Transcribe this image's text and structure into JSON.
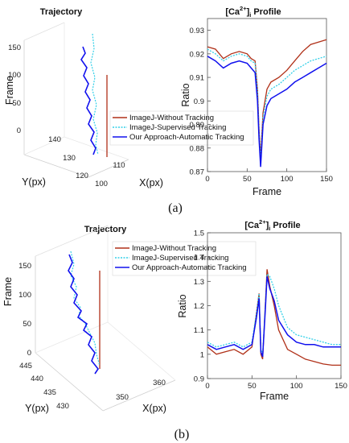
{
  "figure": {
    "panel_a": "(a)",
    "panel_b": "(b)"
  },
  "legend": {
    "entries": [
      {
        "name": "ImageJ-Without Tracking",
        "color": "#b03018",
        "style": "solid"
      },
      {
        "name": "ImageJ-Supervised Tracking",
        "color": "#33d0e8",
        "style": "dotted"
      },
      {
        "name": "Our Approach-Automatic Tracking",
        "color": "#1010ee",
        "style": "solid"
      }
    ]
  },
  "chart_data": [
    {
      "id": "a-trajectory",
      "type": "line",
      "title": "Trajectory",
      "xlabel": "X(px)",
      "ylabel": "Y(px)",
      "zlabel": "Frame",
      "z_ticks": [
        "150",
        "100",
        "50",
        "0"
      ],
      "y_ticks": [
        "140",
        "130",
        "120"
      ],
      "x_ticks": [
        "100",
        "110"
      ],
      "zlim": [
        0,
        150
      ]
    },
    {
      "id": "a-profile",
      "type": "line",
      "title_main": "[Ca",
      "title_sup": "2+",
      "title_close": "]",
      "title_sub": "i",
      "title_rest": " Profile",
      "xlabel": "Frame",
      "ylabel": "Ratio",
      "xlim": [
        0,
        150
      ],
      "ylim": [
        0.87,
        0.935
      ],
      "x_ticks": [
        "0",
        "50",
        "100",
        "150"
      ],
      "y_ticks": [
        "0.93",
        "0.92",
        "0.91",
        "0.9",
        "0.89",
        "0.88",
        "0.87"
      ],
      "x": [
        0,
        10,
        20,
        30,
        40,
        50,
        55,
        60,
        63,
        65,
        67,
        70,
        75,
        80,
        90,
        100,
        110,
        120,
        130,
        140,
        150
      ],
      "series": [
        {
          "name": "ImageJ-Without Tracking",
          "values": [
            0.923,
            0.922,
            0.918,
            0.92,
            0.921,
            0.92,
            0.918,
            0.917,
            0.905,
            0.888,
            0.876,
            0.895,
            0.905,
            0.908,
            0.91,
            0.913,
            0.917,
            0.921,
            0.924,
            0.925,
            0.926
          ]
        },
        {
          "name": "ImageJ-Supervised Tracking",
          "values": [
            0.922,
            0.92,
            0.917,
            0.919,
            0.92,
            0.919,
            0.917,
            0.916,
            0.904,
            0.887,
            0.875,
            0.893,
            0.902,
            0.905,
            0.907,
            0.91,
            0.913,
            0.915,
            0.917,
            0.918,
            0.919
          ]
        },
        {
          "name": "Our Approach-Automatic Tracking",
          "values": [
            0.919,
            0.917,
            0.914,
            0.916,
            0.917,
            0.916,
            0.914,
            0.912,
            0.9,
            0.884,
            0.872,
            0.89,
            0.898,
            0.901,
            0.903,
            0.905,
            0.908,
            0.91,
            0.912,
            0.914,
            0.916
          ]
        }
      ]
    },
    {
      "id": "b-trajectory",
      "type": "line",
      "title": "Trajectory",
      "xlabel": "X(px)",
      "ylabel": "Y(px)",
      "zlabel": "Frame",
      "z_ticks": [
        "150",
        "100",
        "50",
        "0"
      ],
      "y_ticks": [
        "445",
        "440",
        "435",
        "430"
      ],
      "x_ticks": [
        "350",
        "360"
      ],
      "zlim": [
        0,
        150
      ]
    },
    {
      "id": "b-profile",
      "type": "line",
      "title_main": "[Ca",
      "title_sup": "2+",
      "title_close": "]",
      "title_sub": "i",
      "title_rest": " Profile",
      "xlabel": "Frame",
      "ylabel": "Ratio",
      "xlim": [
        0,
        150
      ],
      "ylim": [
        0.9,
        1.5
      ],
      "x_ticks": [
        "0",
        "50",
        "100",
        "150"
      ],
      "y_ticks": [
        "1.5",
        "1.4",
        "1.3",
        "1.2",
        "1.1",
        "1",
        "0.9"
      ],
      "x": [
        0,
        10,
        20,
        30,
        40,
        50,
        55,
        58,
        60,
        62,
        65,
        67,
        70,
        75,
        80,
        90,
        100,
        110,
        120,
        130,
        140,
        150
      ],
      "series": [
        {
          "name": "ImageJ-Without Tracking",
          "values": [
            1.03,
            1.0,
            1.01,
            1.02,
            1.0,
            1.03,
            1.17,
            1.25,
            1.0,
            0.98,
            1.2,
            1.35,
            1.28,
            1.2,
            1.1,
            1.02,
            1.0,
            0.98,
            0.97,
            0.96,
            0.955,
            0.955
          ]
        },
        {
          "name": "ImageJ-Supervised Tracking",
          "values": [
            1.05,
            1.03,
            1.04,
            1.05,
            1.03,
            1.05,
            1.17,
            1.25,
            1.02,
            1.0,
            1.2,
            1.33,
            1.32,
            1.27,
            1.2,
            1.11,
            1.08,
            1.07,
            1.06,
            1.05,
            1.04,
            1.04
          ]
        },
        {
          "name": "Our Approach-Automatic Tracking",
          "values": [
            1.04,
            1.02,
            1.03,
            1.04,
            1.02,
            1.04,
            1.15,
            1.23,
            1.01,
            0.99,
            1.18,
            1.32,
            1.27,
            1.22,
            1.14,
            1.08,
            1.05,
            1.04,
            1.04,
            1.03,
            1.03,
            1.03
          ]
        }
      ]
    }
  ]
}
